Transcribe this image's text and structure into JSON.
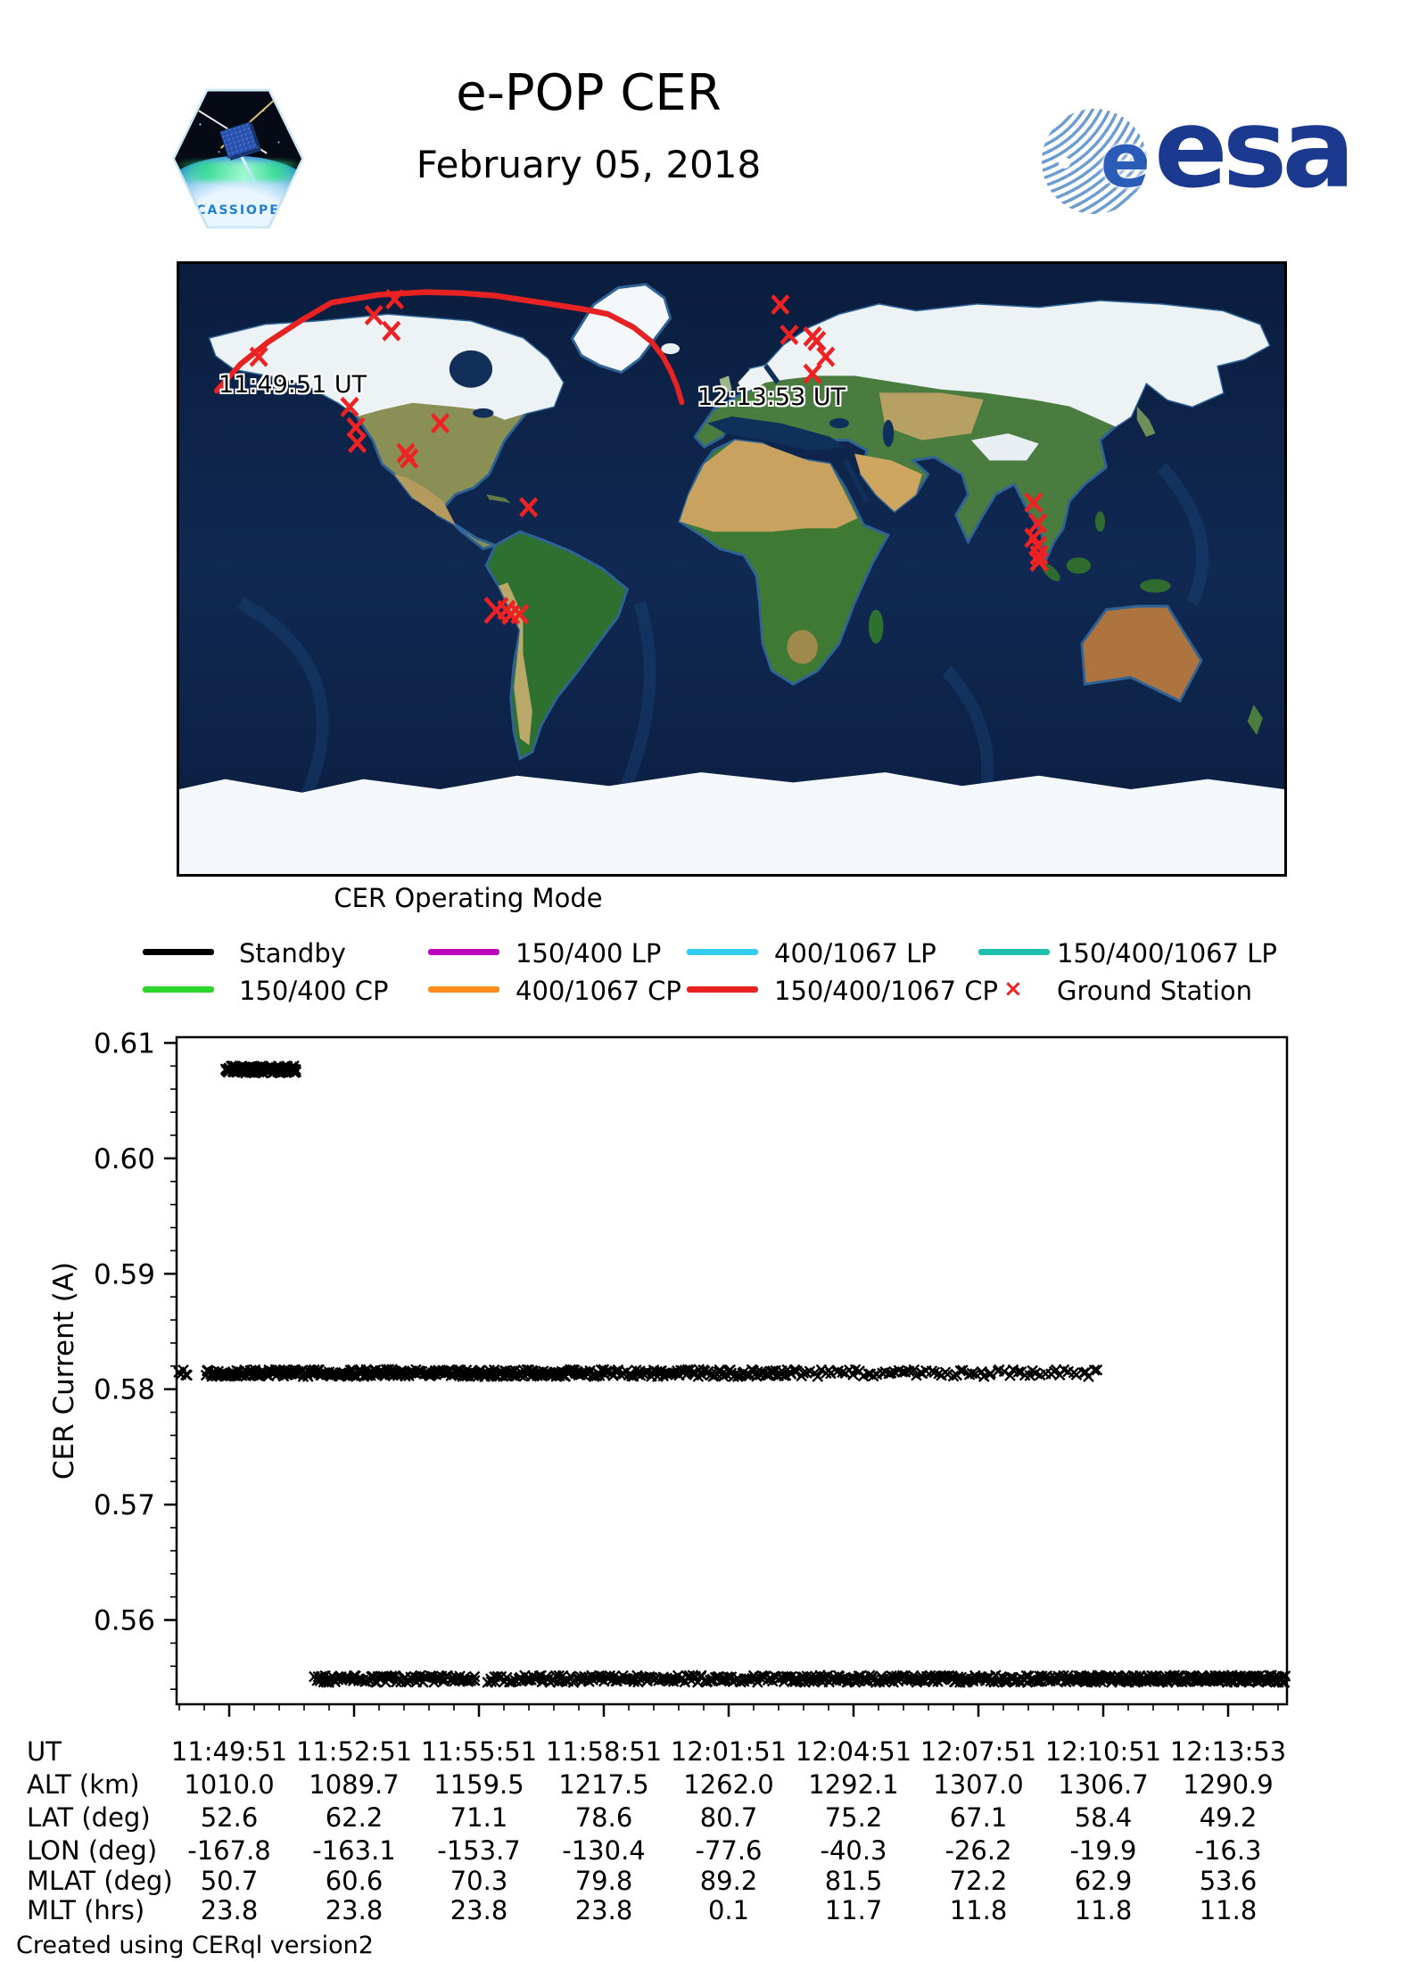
{
  "header": {
    "title": "e-POP CER",
    "date": "February 05, 2018",
    "cassiope_text": "CASSIOPE",
    "esa_text": "esa"
  },
  "map": {
    "start_label": "11:49:51 UT",
    "end_label": "12:13:53 UT",
    "track_color": "#e62222",
    "station_color": "#ee2222",
    "track": [
      [
        -167.8,
        52.6
      ],
      [
        -160,
        60.5
      ],
      [
        -151,
        67
      ],
      [
        -140,
        73.5
      ],
      [
        -130.4,
        78.6
      ],
      [
        -115,
        80.9
      ],
      [
        -100,
        81.7
      ],
      [
        -88,
        81.4
      ],
      [
        -77.6,
        80.7
      ],
      [
        -60,
        78.3
      ],
      [
        -48,
        76.6
      ],
      [
        -40.3,
        75.2
      ],
      [
        -32,
        71.3
      ],
      [
        -26.2,
        67.1
      ],
      [
        -22.5,
        62.8
      ],
      [
        -19.9,
        58.4
      ],
      [
        -17.8,
        53.8
      ],
      [
        -16.3,
        49.2
      ]
    ],
    "ground_stations": [
      [
        -154.1,
        62.6
      ],
      [
        -109.8,
        79.6
      ],
      [
        -116.6,
        74.9
      ],
      [
        -110.9,
        70.2
      ],
      [
        -124.5,
        47.8
      ],
      [
        -122.5,
        41.8
      ],
      [
        -122.0,
        37.2
      ],
      [
        -106.2,
        34.2
      ],
      [
        -105.1,
        32.6
      ],
      [
        -95.0,
        43.0
      ],
      [
        -66.2,
        18.2
      ],
      [
        -76.7,
        -12.2
      ],
      [
        -73.4,
        -12.1
      ],
      [
        -72.0,
        -13.5
      ],
      [
        -69.1,
        -13.3
      ],
      [
        15.8,
        78.0
      ],
      [
        18.7,
        69.1
      ],
      [
        26.3,
        68.6
      ],
      [
        27.7,
        67.3
      ],
      [
        30.6,
        62.6
      ],
      [
        26.3,
        57.6
      ],
      [
        98.3,
        19.6
      ],
      [
        99.7,
        13.5
      ],
      [
        98.3,
        9.2
      ],
      [
        99.7,
        6.8
      ],
      [
        100.1,
        4.1
      ],
      [
        100.1,
        2.2
      ]
    ]
  },
  "legend": {
    "title": "CER Operating Mode",
    "entries": [
      {
        "label": "Standby",
        "color": "#000000",
        "type": "line"
      },
      {
        "label": "150/400 LP",
        "color": "#bb00bb",
        "type": "line"
      },
      {
        "label": "400/1067 LP",
        "color": "#33ccf0",
        "type": "line"
      },
      {
        "label": "150/400/1067 LP",
        "color": "#1fbfae",
        "type": "line"
      },
      {
        "label": "150/400 CP",
        "color": "#2dd62d",
        "type": "line"
      },
      {
        "label": "400/1067 CP",
        "color": "#ff8c1c",
        "type": "line"
      },
      {
        "label": "150/400/1067 CP",
        "color": "#e62222",
        "type": "line"
      },
      {
        "label": "Ground Station",
        "color": "#ee2222",
        "type": "marker"
      }
    ]
  },
  "chart_data": {
    "type": "scatter",
    "marker": "x",
    "marker_color": "#000000",
    "ylabel": "CER Current (A)",
    "ylim": [
      0.5527,
      0.6105
    ],
    "yticks": [
      "0.56",
      "0.57",
      "0.58",
      "0.59",
      "0.60",
      "0.61"
    ],
    "y_minor_step": 0.002,
    "xticks": [
      "11:49:51",
      "11:52:51",
      "11:55:51",
      "11:58:51",
      "12:01:51",
      "12:04:51",
      "12:07:51",
      "12:10:51",
      "12:13:53"
    ],
    "grid": false,
    "bands": [
      {
        "value": 0.6077,
        "note": "standby high level burst near start",
        "segments": [
          [
            0.044,
            0.108,
            130
          ]
        ]
      },
      {
        "value": 0.5814,
        "note": "main standby current level",
        "segments": [
          [
            0.002,
            0.01,
            5
          ],
          [
            0.026,
            0.365,
            320
          ],
          [
            0.365,
            0.56,
            115
          ],
          [
            0.56,
            0.7,
            44
          ],
          [
            0.7,
            0.832,
            36
          ]
        ]
      },
      {
        "value": 0.5549,
        "note": "lower current level",
        "segments": [
          [
            0.124,
            0.27,
            95
          ],
          [
            0.28,
            0.55,
            160
          ],
          [
            0.55,
            0.8,
            190
          ],
          [
            0.8,
            0.999,
            210
          ]
        ]
      }
    ]
  },
  "table": {
    "rows": [
      {
        "label": "UT",
        "values": [
          "11:49:51",
          "11:52:51",
          "11:55:51",
          "11:58:51",
          "12:01:51",
          "12:04:51",
          "12:07:51",
          "12:10:51",
          "12:13:53"
        ]
      },
      {
        "label": "ALT (km)",
        "values": [
          "1010.0",
          "1089.7",
          "1159.5",
          "1217.5",
          "1262.0",
          "1292.1",
          "1307.0",
          "1306.7",
          "1290.9"
        ]
      },
      {
        "label": "LAT (deg)",
        "values": [
          "52.6",
          "62.2",
          "71.1",
          "78.6",
          "80.7",
          "75.2",
          "67.1",
          "58.4",
          "49.2"
        ]
      },
      {
        "label": "LON (deg)",
        "values": [
          "-167.8",
          "-163.1",
          "-153.7",
          "-130.4",
          "-77.6",
          "-40.3",
          "-26.2",
          "-19.9",
          "-16.3"
        ]
      },
      {
        "label": "MLAT (deg)",
        "values": [
          "50.7",
          "60.6",
          "70.3",
          "79.8",
          "89.2",
          "81.5",
          "72.2",
          "62.9",
          "53.6"
        ]
      },
      {
        "label": "MLT (hrs)",
        "values": [
          "23.8",
          "23.8",
          "23.8",
          "23.8",
          "0.1",
          "11.7",
          "11.8",
          "11.8",
          "11.8"
        ]
      }
    ]
  },
  "footer": {
    "credit": "Created using CERql version2"
  }
}
